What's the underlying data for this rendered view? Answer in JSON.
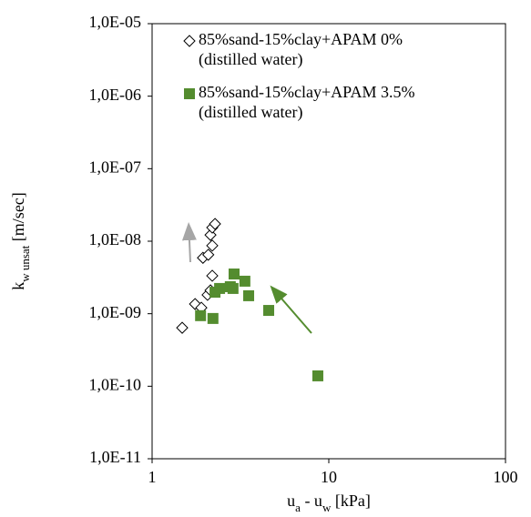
{
  "chart_data": {
    "type": "scatter",
    "xlabel": [
      {
        "text": "u"
      },
      {
        "text": "a",
        "sub": true
      },
      {
        "text": " - u"
      },
      {
        "text": "w",
        "sub": true
      },
      {
        "text": " [kPa]"
      }
    ],
    "ylabel": [
      {
        "text": "k"
      },
      {
        "text": "w unsat",
        "sub": true
      },
      {
        "text": " [m/sec]"
      }
    ],
    "xscale": "log",
    "yscale": "log",
    "grid": false,
    "xlim": [
      1,
      100
    ],
    "xticks": [
      1,
      10,
      100
    ],
    "ylim": [
      1e-11,
      1e-05
    ],
    "yticks": [
      {
        "value": 1e-11,
        "label": "1,0E-11"
      },
      {
        "value": 1e-10,
        "label": "1,0E-10"
      },
      {
        "value": 1e-09,
        "label": "1,0E-09"
      },
      {
        "value": 1e-08,
        "label": "1,0E-08"
      },
      {
        "value": 1e-07,
        "label": "1,0E-07"
      },
      {
        "value": 1e-06,
        "label": "1,0E-06"
      },
      {
        "value": 1e-05,
        "label": "1,0E-05"
      }
    ],
    "legend": "upper left",
    "series": [
      {
        "name": [
          "85%sand-15%clay+APAM 0%",
          "(distilled water)"
        ],
        "marker": "diamond",
        "color": "#000000",
        "x": [
          1.48,
          1.75,
          1.9,
          2.06,
          2.14,
          2.19,
          1.94,
          2.08,
          2.19,
          2.14,
          2.19,
          2.27
        ],
        "values": [
          6.4e-10,
          1.36e-09,
          1.21e-09,
          1.82e-09,
          2.1e-09,
          3.34e-09,
          5.9e-09,
          6.5e-09,
          8.7e-09,
          1.22e-08,
          1.54e-08,
          1.73e-08
        ]
      },
      {
        "name": [
          "85%sand-15%clay+APAM 3.5%",
          "(distilled water)"
        ],
        "marker": "square",
        "color": "#548c2f",
        "x": [
          1.88,
          2.21,
          2.27,
          2.41,
          2.77,
          2.87,
          2.91,
          3.35,
          3.52,
          4.57,
          8.67
        ],
        "values": [
          9.4e-10,
          8.6e-10,
          1.98e-09,
          2.23e-09,
          2.36e-09,
          2.23e-09,
          3.53e-09,
          2.81e-09,
          1.77e-09,
          1.11e-09,
          1.39e-10
        ]
      }
    ]
  }
}
